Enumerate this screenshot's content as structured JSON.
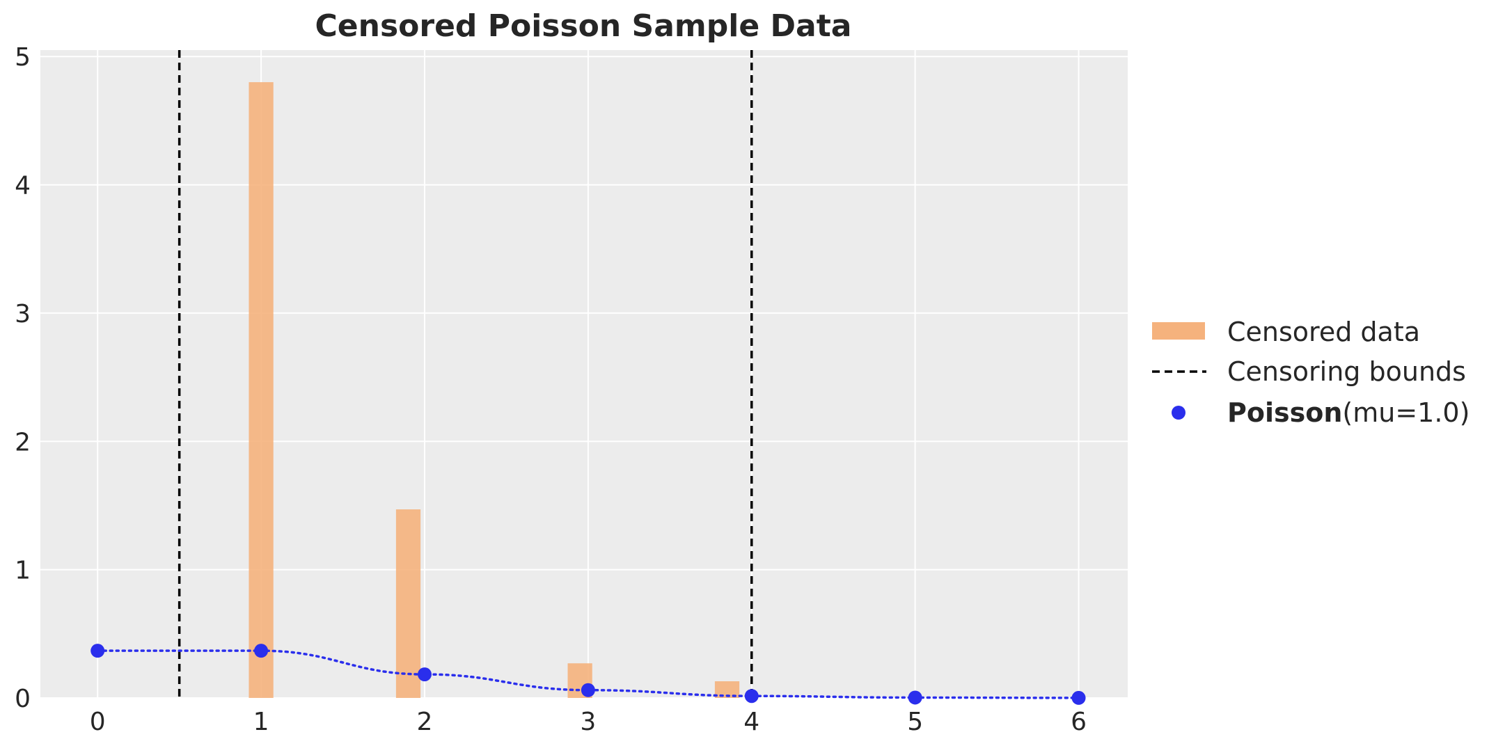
{
  "chart_data": {
    "type": "bar",
    "title": "Censored Poisson Sample Data",
    "xlabel": "",
    "ylabel": "",
    "xlim": [
      -0.35,
      6.3
    ],
    "ylim": [
      0,
      5.05
    ],
    "x_ticks": [
      0,
      1,
      2,
      3,
      4,
      5,
      6
    ],
    "y_ticks": [
      0,
      1,
      2,
      3,
      4,
      5
    ],
    "grid": true,
    "background": "#ececec",
    "legend_position": "right",
    "series": [
      {
        "name": "Censored data",
        "kind": "histogram",
        "color": "#f5b27d",
        "bars": [
          {
            "x": 1.0,
            "height": 4.8
          },
          {
            "x": 1.9,
            "height": 1.47
          },
          {
            "x": 2.95,
            "height": 0.27
          },
          {
            "x": 3.85,
            "height": 0.13
          }
        ],
        "bar_width": 0.15
      },
      {
        "name": "Censoring bounds",
        "kind": "vline",
        "style": "dashed",
        "color": "#000000",
        "x": [
          0.5,
          4.0
        ]
      },
      {
        "name": "Poisson",
        "name_params": "(mu=1.0)",
        "kind": "points",
        "color": "#2a2eec",
        "x": [
          0,
          1,
          2,
          3,
          4,
          5,
          6
        ],
        "y": [
          0.368,
          0.368,
          0.184,
          0.061,
          0.015,
          0.003,
          0.0005
        ]
      }
    ]
  }
}
